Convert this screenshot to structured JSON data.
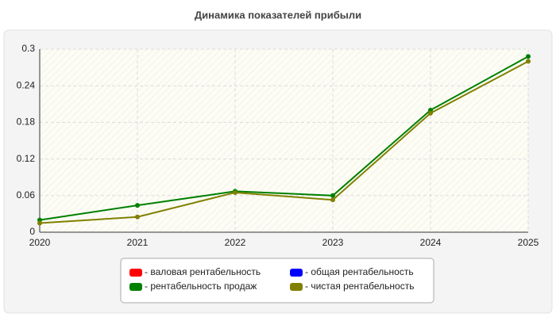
{
  "chart_data": {
    "type": "line",
    "title": "Динамика показателей прибыли",
    "x": [
      2020,
      2021,
      2022,
      2023,
      2024,
      2025
    ],
    "series": [
      {
        "name": "- валовая рентабельность",
        "color": "#ff0000",
        "values": [
          null,
          null,
          null,
          null,
          null,
          null
        ]
      },
      {
        "name": "- общая рентабельность",
        "color": "#0000ff",
        "values": [
          null,
          null,
          null,
          null,
          null,
          null
        ]
      },
      {
        "name": "- рентабельность продаж",
        "color": "#008000",
        "values": [
          0.02,
          0.044,
          0.067,
          0.06,
          0.2,
          0.288
        ]
      },
      {
        "name": "- чистая рентабельность",
        "color": "#808000",
        "values": [
          0.015,
          0.025,
          0.065,
          0.053,
          0.195,
          0.28
        ]
      }
    ],
    "xlim": [
      2020,
      2025
    ],
    "xticks": [
      2020,
      2021,
      2022,
      2023,
      2024,
      2025
    ],
    "ylim": [
      0,
      0.3
    ],
    "yticks": [
      0,
      0.06,
      0.12,
      0.18,
      0.24,
      0.3
    ],
    "grid": true
  }
}
